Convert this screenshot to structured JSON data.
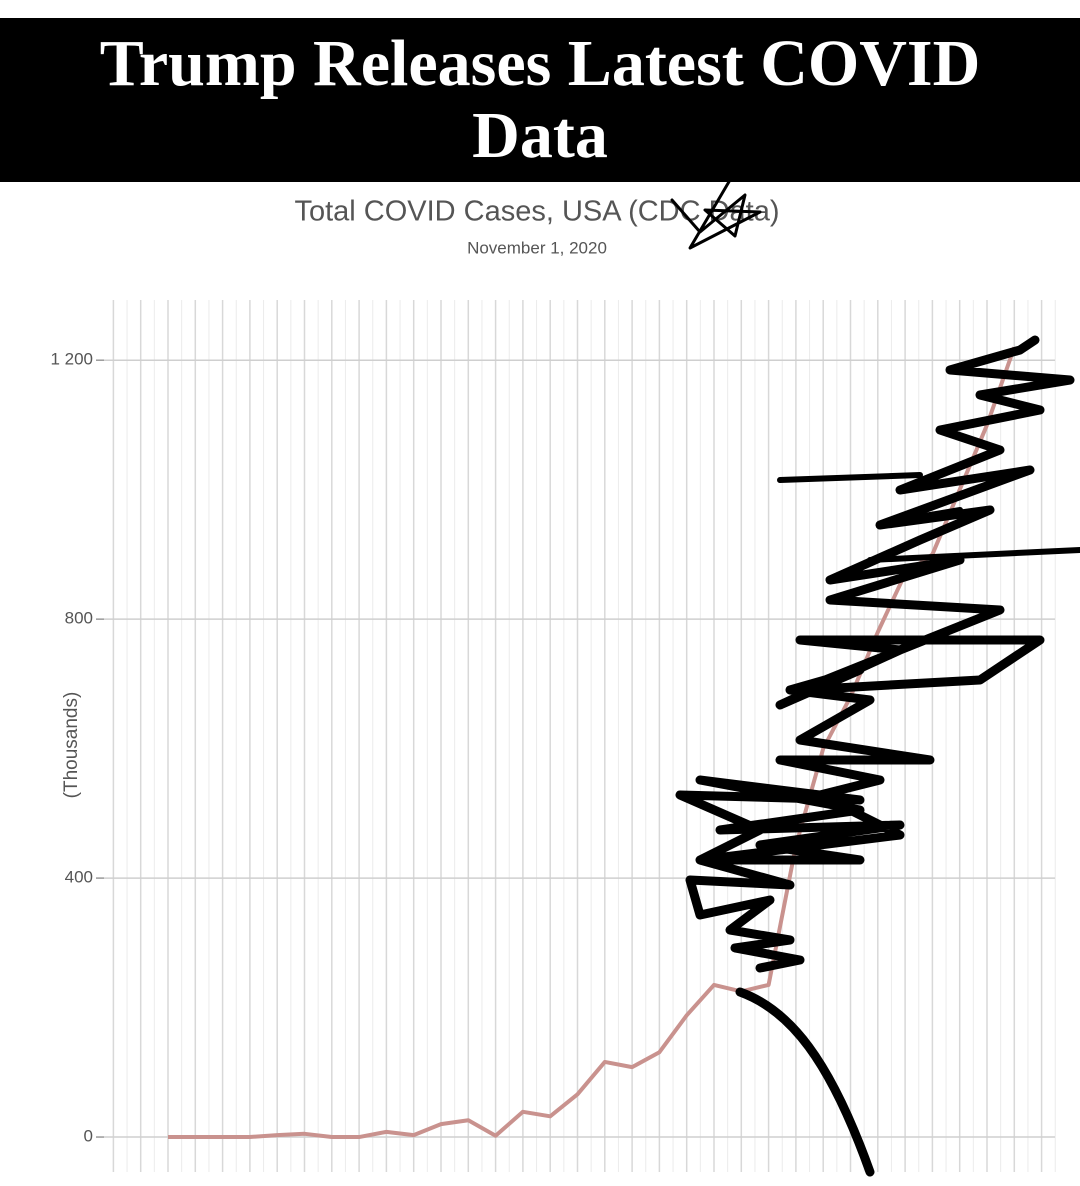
{
  "headline": "Trump Releases Latest COVID Data",
  "chart_data": {
    "type": "line",
    "title": "Total COVID Cases, USA (CDC Data)",
    "subtitle": "November 1, 2020",
    "y_label": "(Thousands)",
    "categories": [
      null,
      null,
      null,
      null,
      null,
      null,
      null,
      null,
      null,
      null,
      null,
      null,
      null,
      null,
      null,
      null,
      null,
      null,
      null,
      null,
      null,
      null,
      null,
      null,
      null,
      null,
      null,
      null,
      null,
      null,
      null,
      null
    ],
    "series": [
      {
        "name": null,
        "color": "#c9928e",
        "values": [
          0,
          0,
          0,
          0,
          3,
          5,
          0,
          0,
          8,
          3,
          20,
          26,
          2,
          39,
          32,
          66,
          116,
          108,
          131,
          188,
          235,
          225,
          235,
          450,
          600,
          680,
          780,
          870,
          900,
          1000,
          1100,
          1220
        ]
      }
    ],
    "ylim": [
      -54,
      1293
    ],
    "yticks": [
      0,
      400,
      800,
      {
        "value": 1200,
        "label": "1 200"
      }
    ],
    "grid": true
  }
}
